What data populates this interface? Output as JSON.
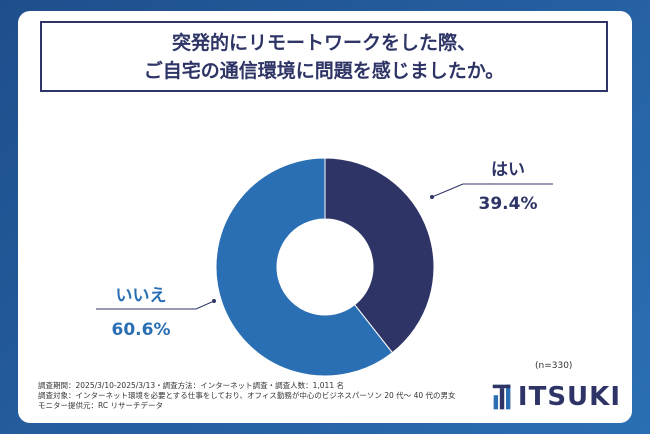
{
  "title": {
    "line1": "突発的にリモートワークをした際、",
    "line2": "ご自宅の通信環境に問題を感じましたか。"
  },
  "chart_data": {
    "type": "pie",
    "variant": "donut",
    "slices": [
      {
        "label": "はい",
        "value": 39.4,
        "value_label": "39.4%",
        "color": "#2e3566"
      },
      {
        "label": "いいえ",
        "value": 60.6,
        "value_label": "60.6%",
        "color": "#2a6fb3"
      }
    ]
  },
  "sample_size": "(n=330)",
  "footer": {
    "line1": "調査期間：2025/3/10-2025/3/13・調査方法：インターネット調査・調査人数：1,011 名",
    "line2": "調査対象：インターネット環境を必要とする仕事をしており、オフィス勤務が中心のビジネスパーソン 20 代〜 40 代の男女",
    "line3": "モニター提供元：RC リサーチデータ"
  },
  "logo": {
    "text": "ITSUKI"
  },
  "colors": {
    "navy": "#2e3566",
    "blue": "#2a6fb3"
  }
}
